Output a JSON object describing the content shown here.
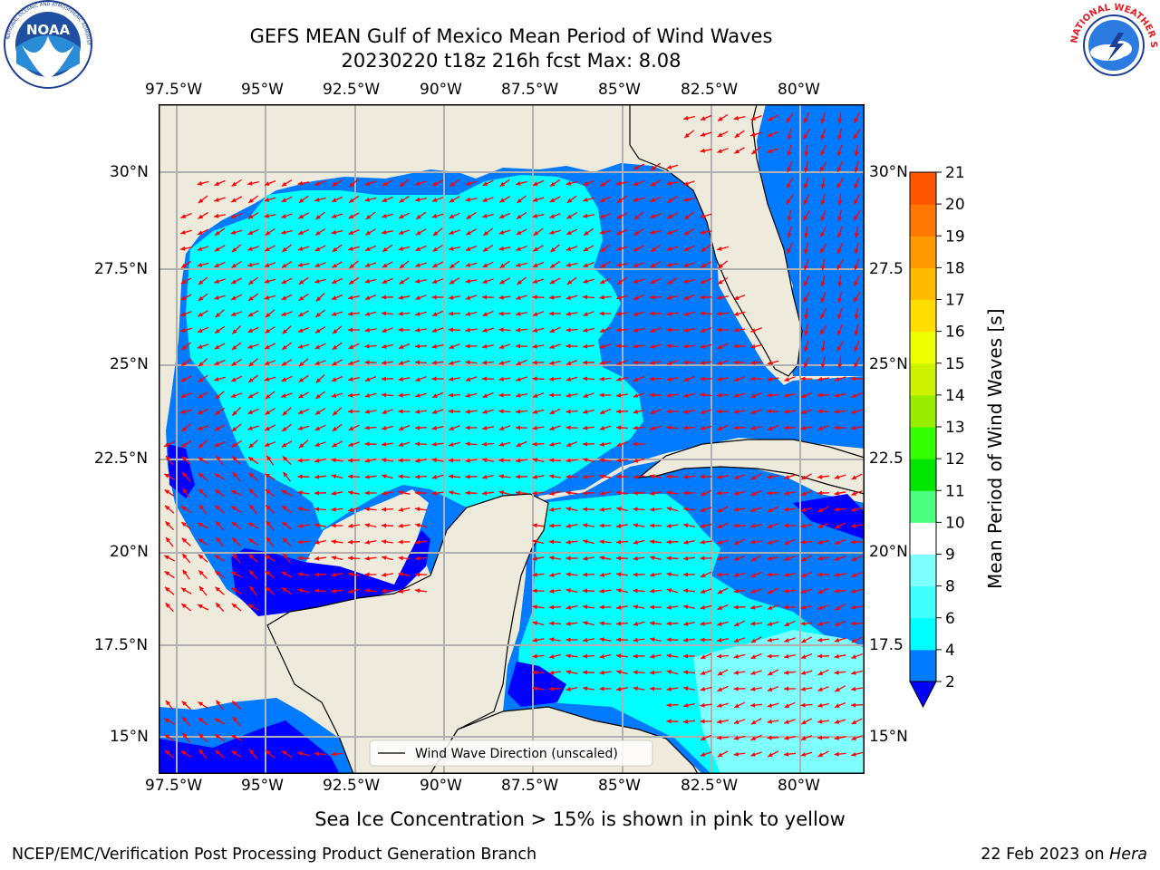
{
  "header": {
    "title_line1": "GEFS MEAN Gulf of Mexico Mean Period of Wind Waves",
    "title_line2": "20230220 t18z 216h fcst   Max: 8.08"
  },
  "logos": {
    "left": {
      "name": "noaa-logo",
      "text": "NOAA",
      "ring_text": "NATIONAL OCEANIC AND ATMOSPHERIC ADMINISTRATION · U.S. DEPARTMENT OF COMMERCE"
    },
    "right": {
      "name": "nws-logo",
      "ring_text": "NATIONAL WEATHER SERVICE"
    }
  },
  "map": {
    "lon_labels": [
      "97.5°W",
      "95°W",
      "92.5°W",
      "90°W",
      "87.5°W",
      "85°W",
      "82.5°W",
      "80°W"
    ],
    "lat_labels_left": [
      "30°N",
      "27.5°N",
      "25°N",
      "22.5°N",
      "20°N",
      "17.5°N",
      "15°N"
    ],
    "lat_labels_right": [
      "30°N",
      "27.5",
      "25°N",
      "22.5",
      "20°N",
      "17.5",
      "15°N"
    ],
    "legend_label": "Wind Wave Direction (unscaled)",
    "colors": {
      "land": "#efebdc",
      "grid": "#b0b0b0",
      "arrow": "#ff0000"
    }
  },
  "colorbar": {
    "title": "Mean Period of Wind Waves [s]",
    "tick_labels": [
      "2",
      "4",
      "6",
      "8",
      "9",
      "10",
      "11",
      "12",
      "13",
      "14",
      "15",
      "16",
      "17",
      "18",
      "19",
      "20",
      "21"
    ],
    "colors": [
      "#0000ff",
      "#007bff",
      "#00ffff",
      "#40ffff",
      "#80ffff",
      "#ffffff",
      "#4cff7f",
      "#00e600",
      "#33ff00",
      "#66ff00",
      "#99ee00",
      "#ccf200",
      "#eeff00",
      "#ffff00",
      "#ffdd00",
      "#ffbb00",
      "#ff9900",
      "#ff7700",
      "#ff5500",
      "#ff2a00",
      "#ff0000"
    ]
  },
  "subtitle": "Sea Ice Concentration > 15% is shown in pink to yellow",
  "footer": {
    "left": "NCEP/EMC/Verification Post Processing Product Generation Branch",
    "right_prefix": "22 Feb 2023 on ",
    "right_machine": "Hera"
  }
}
